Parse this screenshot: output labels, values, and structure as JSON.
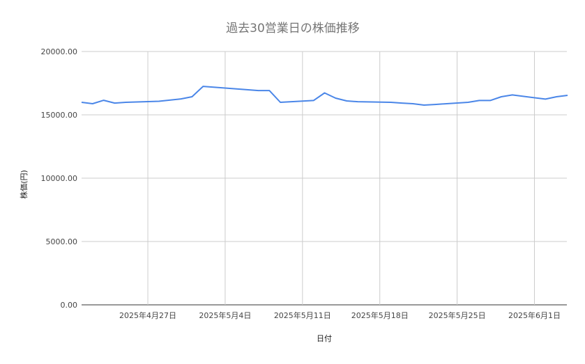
{
  "chart_data": {
    "type": "line",
    "title": "過去30営業日の株価推移",
    "xlabel": "日付",
    "ylabel": "株価(円)",
    "ylim": [
      0,
      20000
    ],
    "yticks": [
      "0.00",
      "5000.00",
      "10000.00",
      "15000.00",
      "20000.00"
    ],
    "xlim": [
      "2025-04-21",
      "2025-06-04"
    ],
    "xticks": [
      {
        "date": "2025-04-27",
        "label": "2025年4月27日"
      },
      {
        "date": "2025-05-04",
        "label": "2025年5月4日"
      },
      {
        "date": "2025-05-11",
        "label": "2025年5月11日"
      },
      {
        "date": "2025-05-18",
        "label": "2025年5月18日"
      },
      {
        "date": "2025-05-25",
        "label": "2025年5月25日"
      },
      {
        "date": "2025-06-01",
        "label": "2025年6月1日"
      }
    ],
    "grid": true,
    "line_color": "#4a86e8",
    "x": [
      "2025-04-21",
      "2025-04-22",
      "2025-04-23",
      "2025-04-24",
      "2025-04-25",
      "2025-04-28",
      "2025-04-30",
      "2025-05-01",
      "2025-05-02",
      "2025-05-07",
      "2025-05-08",
      "2025-05-09",
      "2025-05-12",
      "2025-05-13",
      "2025-05-14",
      "2025-05-15",
      "2025-05-16",
      "2025-05-19",
      "2025-05-20",
      "2025-05-21",
      "2025-05-22",
      "2025-05-23",
      "2025-05-26",
      "2025-05-27",
      "2025-05-28",
      "2025-05-29",
      "2025-05-30",
      "2025-06-02",
      "2025-06-03",
      "2025-06-04"
    ],
    "values": [
      15990,
      15880,
      16150,
      15930,
      15990,
      16070,
      16260,
      16430,
      17250,
      16920,
      16920,
      15990,
      16130,
      16730,
      16320,
      16100,
      16040,
      15990,
      15930,
      15880,
      15770,
      15820,
      15990,
      16130,
      16130,
      16430,
      16570,
      16240,
      16430,
      16540
    ]
  }
}
